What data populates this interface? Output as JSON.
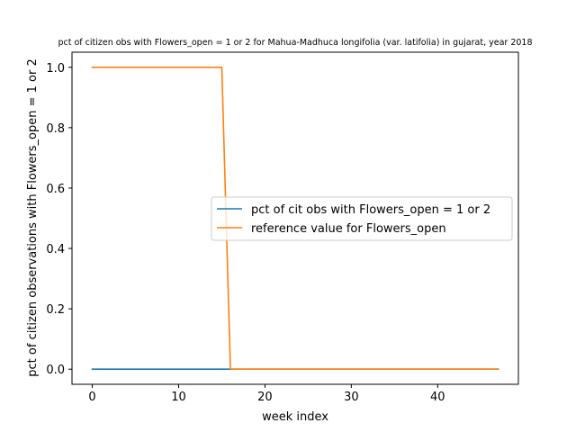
{
  "chart_data": {
    "type": "line",
    "title": "pct of citizen obs with Flowers_open = 1 or 2 for Mahua-Madhuca longifolia (var. latifolia) in gujarat, year 2018",
    "xlabel": "week index",
    "ylabel": "pct of citizen observations with Flowers_open = 1 or 2",
    "xlim": [
      -2.35,
      49.35
    ],
    "ylim": [
      -0.05,
      1.05
    ],
    "xticks": [
      0,
      10,
      20,
      30,
      40
    ],
    "yticks": [
      0.0,
      0.2,
      0.4,
      0.6,
      0.8,
      1.0
    ],
    "xtick_labels": [
      "0",
      "10",
      "20",
      "30",
      "40"
    ],
    "ytick_labels": [
      "0.0",
      "0.2",
      "0.4",
      "0.6",
      "0.8",
      "1.0"
    ],
    "grid": false,
    "legend_position": "center-right",
    "series": [
      {
        "name": "pct of cit obs with Flowers_open = 1 or 2",
        "color": "#1f77b4",
        "x": [
          0,
          47
        ],
        "y": [
          0,
          0
        ]
      },
      {
        "name": "reference value for Flowers_open",
        "color": "#ff7f0e",
        "x": [
          0,
          15,
          16,
          47
        ],
        "y": [
          1,
          1,
          0,
          0
        ]
      }
    ]
  }
}
